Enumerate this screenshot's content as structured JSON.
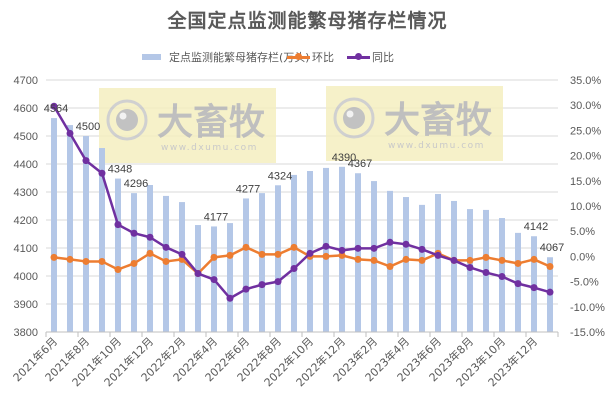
{
  "chart_data": {
    "type": "bar+line",
    "title": "全国定点监测能繁母猪存栏情况",
    "categories": [
      "2021年6月",
      "2021年7月",
      "2021年8月",
      "2021年9月",
      "2021年10月",
      "2021年11月",
      "2021年12月",
      "2022年1月",
      "2022年2月",
      "2022年3月",
      "2022年4月",
      "2022年5月",
      "2022年6月",
      "2022年7月",
      "2022年8月",
      "2022年9月",
      "2022年10月",
      "2022年11月",
      "2022年12月",
      "2023年1月",
      "2023年2月",
      "2023年3月",
      "2023年4月",
      "2023年5月",
      "2023年6月",
      "2023年7月",
      "2023年8月",
      "2023年9月",
      "2023年10月",
      "2023年11月",
      "2023年12月",
      "2024年1月"
    ],
    "x_tick_labels_shown": [
      "2021年6月",
      "2021年8月",
      "2021年10月",
      "2021年12月",
      "2022年2月",
      "2022年4月",
      "2022年6月",
      "2022年8月",
      "2022年10月",
      "2022年12月",
      "2023年2月",
      "2023年4月",
      "2023年6月",
      "2023年8月",
      "2023年10月",
      "2023年12月"
    ],
    "series": [
      {
        "name": "定点监测能繁母猪存栏(万头)",
        "type": "bar",
        "axis": "left",
        "color": "#b4c7e7",
        "values": [
          4564,
          4539,
          4500,
          4457,
          4348,
          4296,
          4325,
          4286,
          4264,
          4182,
          4177,
          4189,
          4277,
          4296,
          4324,
          4361,
          4375,
          4386,
          4390,
          4367,
          4339,
          4304,
          4282,
          4254,
          4293,
          4268,
          4239,
          4236,
          4207,
          4154,
          4142,
          4067
        ]
      },
      {
        "name": "环比",
        "type": "line",
        "axis": "right",
        "unit": "%",
        "color": "#ed7d31",
        "values": [
          -0.2,
          -0.6,
          -1.0,
          -1.0,
          -2.6,
          -1.4,
          0.6,
          -1.0,
          -0.6,
          -3.4,
          -0.2,
          0.2,
          1.8,
          0.4,
          0.4,
          1.8,
          0.0,
          0.0,
          0.2,
          -0.6,
          -0.8,
          -2.0,
          -0.6,
          -0.8,
          0.6,
          -0.8,
          -0.8,
          -0.2,
          -0.8,
          -1.4,
          -0.6,
          -2.0
        ]
      },
      {
        "name": "同比",
        "type": "line",
        "axis": "right",
        "unit": "%",
        "color": "#7030a0",
        "values": [
          29.8,
          24.4,
          19.0,
          16.5,
          6.3,
          4.6,
          3.8,
          1.8,
          0.4,
          -3.4,
          -4.6,
          -8.3,
          -6.5,
          -5.6,
          -5.0,
          -2.4,
          0.6,
          2.0,
          1.2,
          1.6,
          1.6,
          2.8,
          2.4,
          1.4,
          0.2,
          -0.8,
          -2.2,
          -3.2,
          -4.0,
          -5.4,
          -6.2,
          -7.1
        ]
      }
    ],
    "data_labels": [
      {
        "category": "2021年6月",
        "value": "4564"
      },
      {
        "category": "2021年8月",
        "value": "4500"
      },
      {
        "category": "2021年10月",
        "value": "4348"
      },
      {
        "category": "2021年11月",
        "value": "4296"
      },
      {
        "category": "2022年4月",
        "value": "4177"
      },
      {
        "category": "2022年6月",
        "value": "4277"
      },
      {
        "category": "2022年8月",
        "value": "4324"
      },
      {
        "category": "2022年12月",
        "value": "4390"
      },
      {
        "category": "2023年1月",
        "value": "4367"
      },
      {
        "category": "2023年12月",
        "value": "4142"
      },
      {
        "category": "2024年1月",
        "value": "4067"
      }
    ],
    "left_axis": {
      "min": 3800,
      "max": 4700,
      "step": 100,
      "tick_labels": [
        "4700",
        "4600",
        "4500",
        "4400",
        "4300",
        "4200",
        "4100",
        "4000",
        "3900",
        "3800"
      ]
    },
    "right_axis": {
      "min": -15,
      "max": 35,
      "step": 5,
      "tick_labels": [
        "35.0%",
        "30.0%",
        "25.0%",
        "20.0%",
        "15.0%",
        "10.0%",
        "5.0%",
        "0.0%",
        "-5.0%",
        "-10.0%",
        "-15.0%"
      ]
    },
    "grid": true,
    "legend_position": "top"
  },
  "legend": {
    "bar_label": "定点监测能繁母猪存栏(万头)",
    "mom_label": "环比",
    "yoy_label": "同比"
  },
  "watermark": {
    "brand": "大畜牧",
    "url": "www.dxumu.com"
  },
  "colors": {
    "bar": "#b4c7e7",
    "mom": "#ed7d31",
    "yoy": "#7030a0",
    "grid": "#d9d9d9",
    "text": "#595959",
    "watermark_bg": "#f5efc0"
  }
}
